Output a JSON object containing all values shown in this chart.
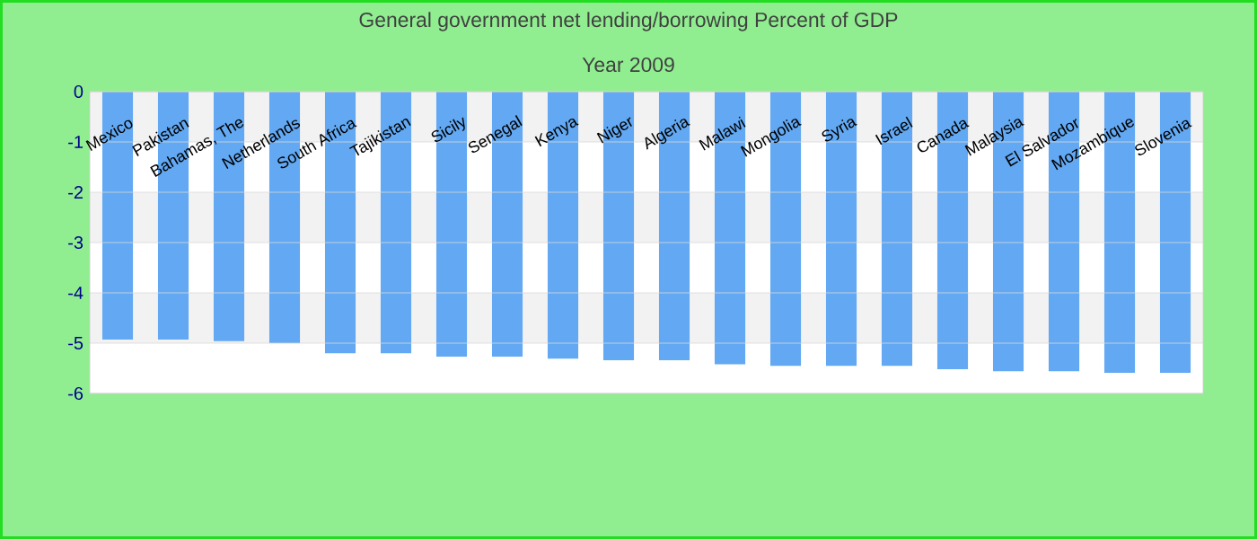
{
  "chart_data": {
    "type": "bar",
    "title": "General government net lending/borrowing  Percent of GDP",
    "subtitle": "Year 2009",
    "categories": [
      "Mexico",
      "Pakistan",
      "Bahamas, The",
      "Netherlands",
      "South Africa",
      "Tajikistan",
      "Sicily",
      "Senegal",
      "Kenya",
      "Niger",
      "Algeria",
      "Malawi",
      "Mongolia",
      "Syria",
      "Israel",
      "Canada",
      "Malaysia",
      "El Salvador",
      "Mozambique",
      "Slovenia"
    ],
    "values": [
      -4.93,
      -4.93,
      -4.96,
      -5.0,
      -5.2,
      -5.2,
      -5.27,
      -5.27,
      -5.31,
      -5.34,
      -5.34,
      -5.42,
      -5.45,
      -5.45,
      -5.45,
      -5.52,
      -5.56,
      -5.56,
      -5.59,
      -5.59
    ],
    "color": "#62a8f2",
    "ylim": [
      -6,
      0
    ],
    "yticks": [
      -6,
      -5,
      -4,
      -3,
      -2,
      -1,
      0
    ],
    "grid": "y"
  }
}
